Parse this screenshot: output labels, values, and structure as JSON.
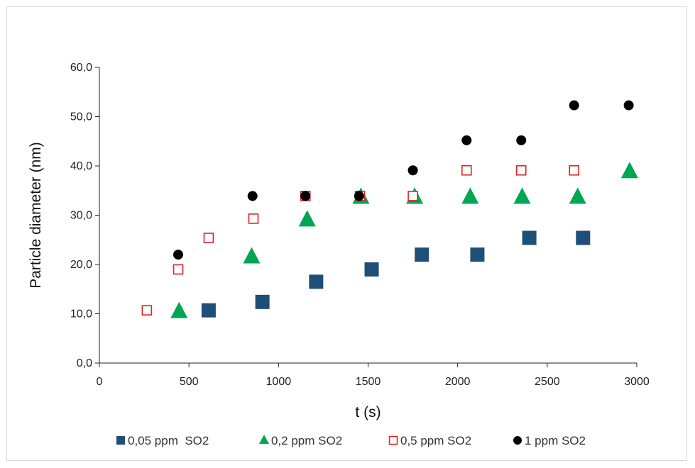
{
  "chart_data": {
    "type": "scatter",
    "xlabel": "t (s)",
    "ylabel": "Particle diameter (nm)",
    "xlim": [
      0,
      3000
    ],
    "ylim": [
      0,
      60
    ],
    "x_ticks": [
      0,
      500,
      1000,
      1500,
      2000,
      2500,
      3000
    ],
    "y_ticks": [
      "0,0",
      "10,0",
      "20,0",
      "30,0",
      "40,0",
      "50,0",
      "60,0"
    ],
    "y_tick_values": [
      0,
      10,
      20,
      30,
      40,
      50,
      60
    ],
    "grid": false,
    "legend_position": "bottom",
    "series": [
      {
        "name": "0,05 ppm  SO2",
        "marker": "square",
        "color": "#1f4e79",
        "filled": true,
        "points": [
          [
            610,
            10.7
          ],
          [
            910,
            12.4
          ],
          [
            1210,
            16.5
          ],
          [
            1520,
            19.0
          ],
          [
            1800,
            22.0
          ],
          [
            2110,
            22.0
          ],
          [
            2400,
            25.4
          ],
          [
            2700,
            25.4
          ]
        ]
      },
      {
        "name": "0,2 ppm SO2",
        "marker": "triangle",
        "color": "#00a651",
        "filled": true,
        "points": [
          [
            445,
            10.7
          ],
          [
            850,
            21.8
          ],
          [
            1160,
            29.3
          ],
          [
            1460,
            33.9
          ],
          [
            1760,
            33.9
          ],
          [
            2070,
            33.9
          ],
          [
            2360,
            33.9
          ],
          [
            2670,
            33.9
          ],
          [
            2960,
            39.1
          ]
        ]
      },
      {
        "name": "0,5 ppm SO2",
        "marker": "square-open",
        "color": "#e02020",
        "filled": false,
        "points": [
          [
            265,
            10.7
          ],
          [
            440,
            19.0
          ],
          [
            610,
            25.4
          ],
          [
            860,
            29.3
          ],
          [
            1150,
            33.9
          ],
          [
            1455,
            33.9
          ],
          [
            1750,
            33.9
          ],
          [
            2050,
            39.1
          ],
          [
            2355,
            39.1
          ],
          [
            2650,
            39.1
          ]
        ]
      },
      {
        "name": "1 ppm SO2",
        "marker": "circle",
        "color": "#000000",
        "filled": true,
        "points": [
          [
            440,
            22.0
          ],
          [
            855,
            33.9
          ],
          [
            1150,
            33.9
          ],
          [
            1450,
            33.9
          ],
          [
            1750,
            39.1
          ],
          [
            2050,
            45.2
          ],
          [
            2355,
            45.2
          ],
          [
            2650,
            52.3
          ],
          [
            2955,
            52.3
          ]
        ]
      }
    ]
  }
}
